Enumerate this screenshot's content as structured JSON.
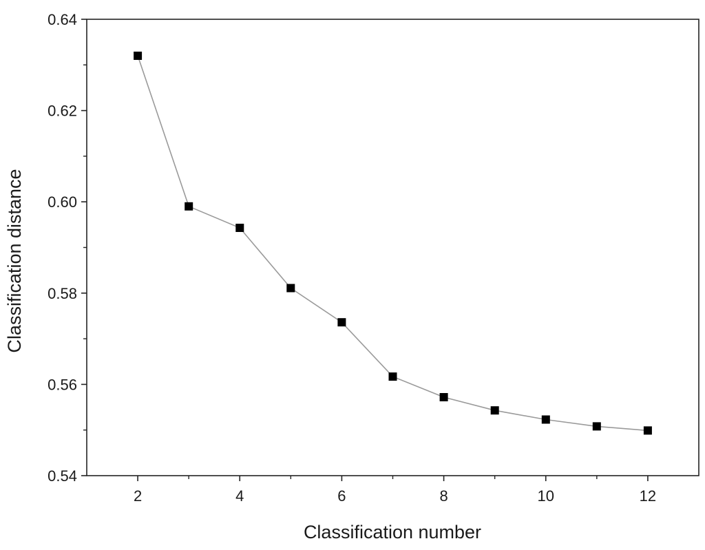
{
  "chart_data": {
    "type": "line",
    "title": "",
    "xlabel": "Classification number",
    "ylabel": "Classification distance",
    "xlim": [
      1,
      13
    ],
    "ylim": [
      0.54,
      0.64
    ],
    "x_ticks": [
      2,
      4,
      6,
      8,
      10,
      12
    ],
    "x_ticks_minor": [
      3,
      5,
      7,
      9,
      11
    ],
    "y_ticks": [
      0.54,
      0.56,
      0.58,
      0.6,
      0.62,
      0.64
    ],
    "y_tick_labels": [
      "0.54",
      "0.56",
      "0.58",
      "0.60",
      "0.62",
      "0.64"
    ],
    "grid": false,
    "legend": "none",
    "marker": "square",
    "series": [
      {
        "x": [
          2,
          3,
          4,
          5,
          6,
          7,
          8,
          9,
          10,
          11,
          12
        ],
        "values": [
          0.632,
          0.599,
          0.5943,
          0.5811,
          0.5736,
          0.5617,
          0.5572,
          0.5543,
          0.5523,
          0.5508,
          0.5499
        ],
        "color": "#000000",
        "line_color": "#9a9a9a"
      }
    ]
  }
}
